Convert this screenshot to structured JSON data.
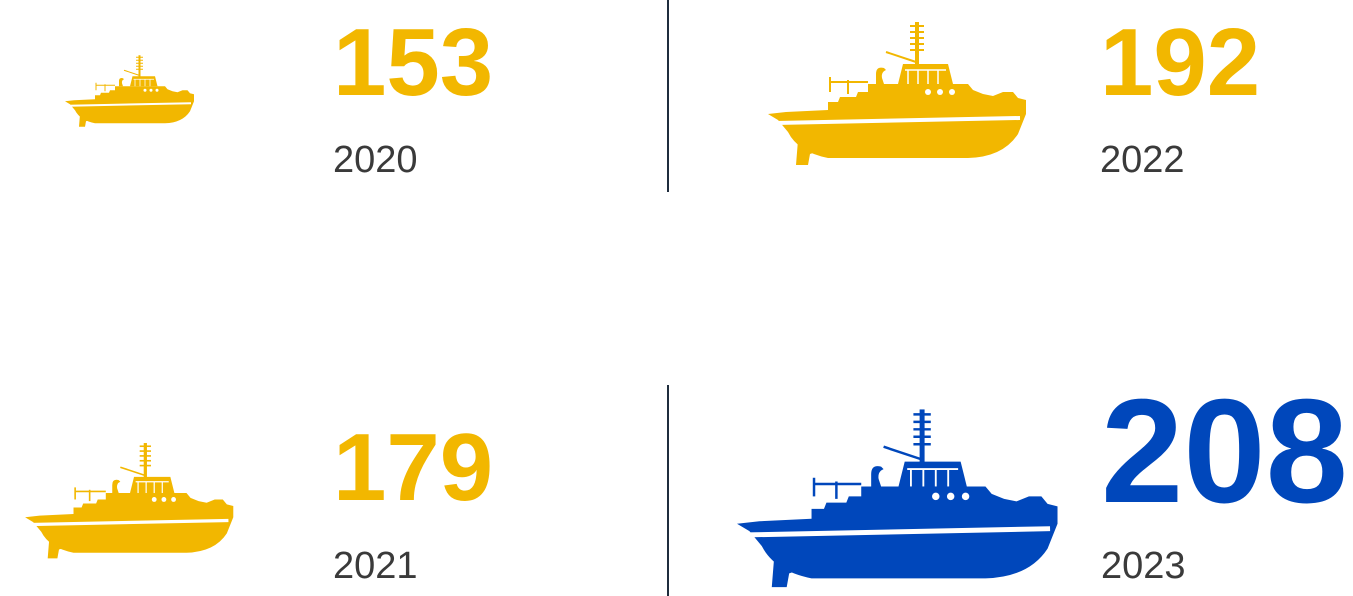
{
  "items": [
    {
      "value": "153",
      "year": "2020",
      "color": "#f2b700"
    },
    {
      "value": "179",
      "year": "2021",
      "color": "#f2b700"
    },
    {
      "value": "192",
      "year": "2022",
      "color": "#f2b700"
    },
    {
      "value": "208",
      "year": "2023",
      "color": "#0047bb"
    }
  ]
}
